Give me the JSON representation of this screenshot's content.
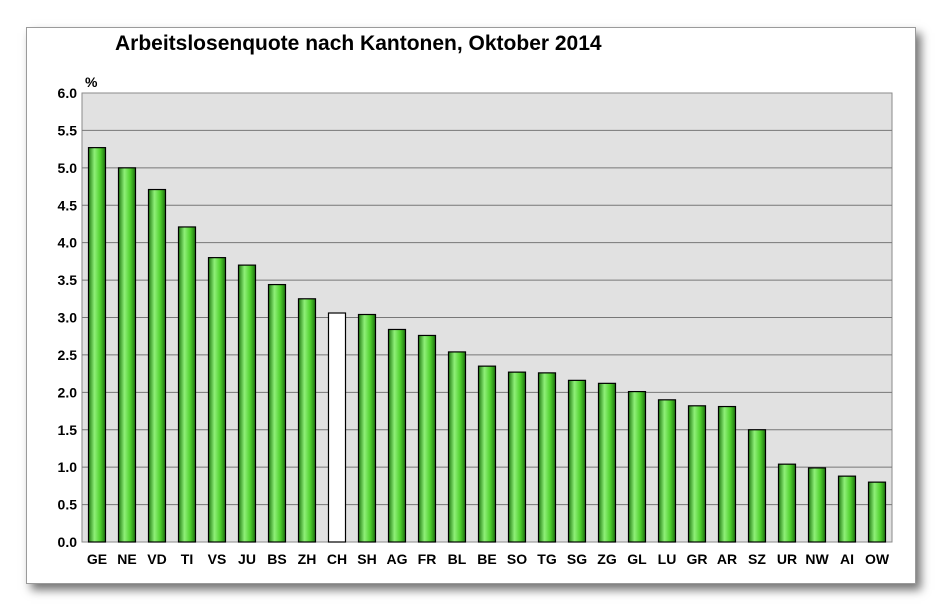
{
  "chart_data": {
    "type": "bar",
    "title": "Arbeitslosenquote nach Kantonen, Oktober 2014",
    "ylabel": "%",
    "xlabel": "",
    "ylim": [
      0,
      6.0
    ],
    "yticks": [
      "0.0",
      "0.5",
      "1.0",
      "1.5",
      "2.0",
      "2.5",
      "3.0",
      "3.5",
      "4.0",
      "4.5",
      "5.0",
      "5.5",
      "6.0"
    ],
    "grid": true,
    "categories": [
      "GE",
      "NE",
      "VD",
      "TI",
      "VS",
      "JU",
      "BS",
      "ZH",
      "CH",
      "SH",
      "AG",
      "FR",
      "BL",
      "BE",
      "SO",
      "TG",
      "SG",
      "ZG",
      "GL",
      "LU",
      "GR",
      "AR",
      "SZ",
      "UR",
      "NW",
      "AI",
      "OW"
    ],
    "values": [
      5.27,
      5.0,
      4.71,
      4.21,
      3.8,
      3.7,
      3.44,
      3.25,
      3.06,
      3.04,
      2.84,
      2.76,
      2.54,
      2.35,
      2.27,
      2.26,
      2.16,
      2.12,
      2.01,
      1.9,
      1.82,
      1.81,
      1.5,
      1.04,
      0.99,
      0.88,
      0.8
    ],
    "highlight_category": "CH",
    "colors": {
      "bar_fill": "#4ecf2c",
      "bar_highlight": "#ffffff",
      "plot_background": "#e1e1e1",
      "grid": "#777777"
    }
  }
}
